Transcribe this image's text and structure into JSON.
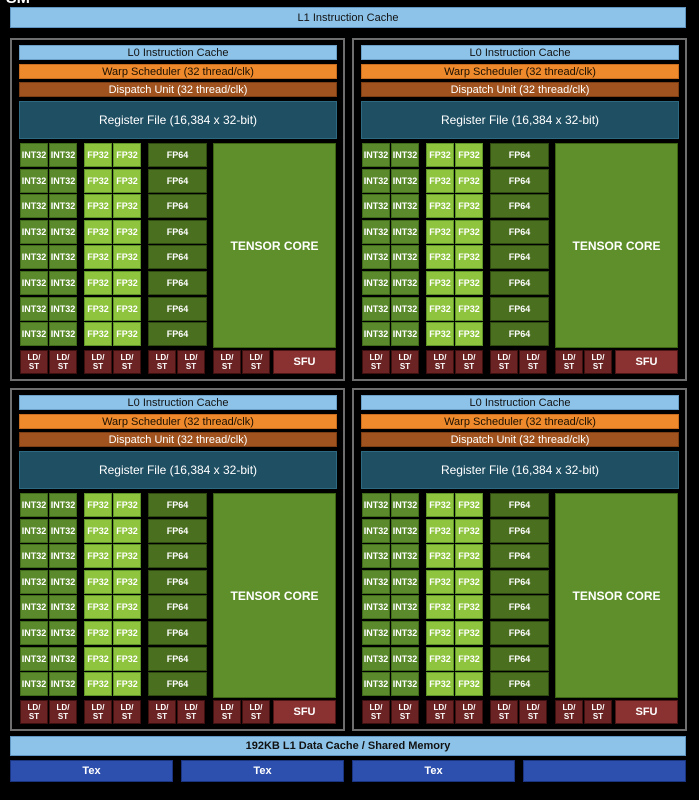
{
  "sm_title": "SM",
  "l1_instruction_cache": "L1 Instruction Cache",
  "quadrant": {
    "l0_cache": "L0 Instruction Cache",
    "warp_scheduler": "Warp Scheduler (32 thread/clk)",
    "dispatch_unit": "Dispatch Unit (32 thread/clk)",
    "register_file": "Register File (16,384 x 32-bit)",
    "int32_label": "INT32",
    "fp32_label": "FP32",
    "fp64_label": "FP64",
    "tensor_core_label": "TENSOR CORE",
    "ldst_line1": "LD/",
    "ldst_line2": "ST",
    "sfu_label": "SFU",
    "rows": 8,
    "ldst_units": 8
  },
  "l1_data_cache": "192KB L1 Data Cache / Shared Memory",
  "tex_units": [
    "Tex",
    "Tex",
    "Tex",
    ""
  ],
  "colors": {
    "cache_blue": "#8dc3e8",
    "warp_orange": "#ef8a2c",
    "dispatch_brown": "#a0531e",
    "register_teal": "#1f4f63",
    "int32_green": "#5b8a2c",
    "fp32_green": "#8fc43f",
    "fp64_green": "#4a6f1f",
    "tensor_green": "#5f8f2a",
    "ldst_red": "#6b2323",
    "sfu_red": "#8a3232",
    "tex_blue": "#2d4fae"
  }
}
